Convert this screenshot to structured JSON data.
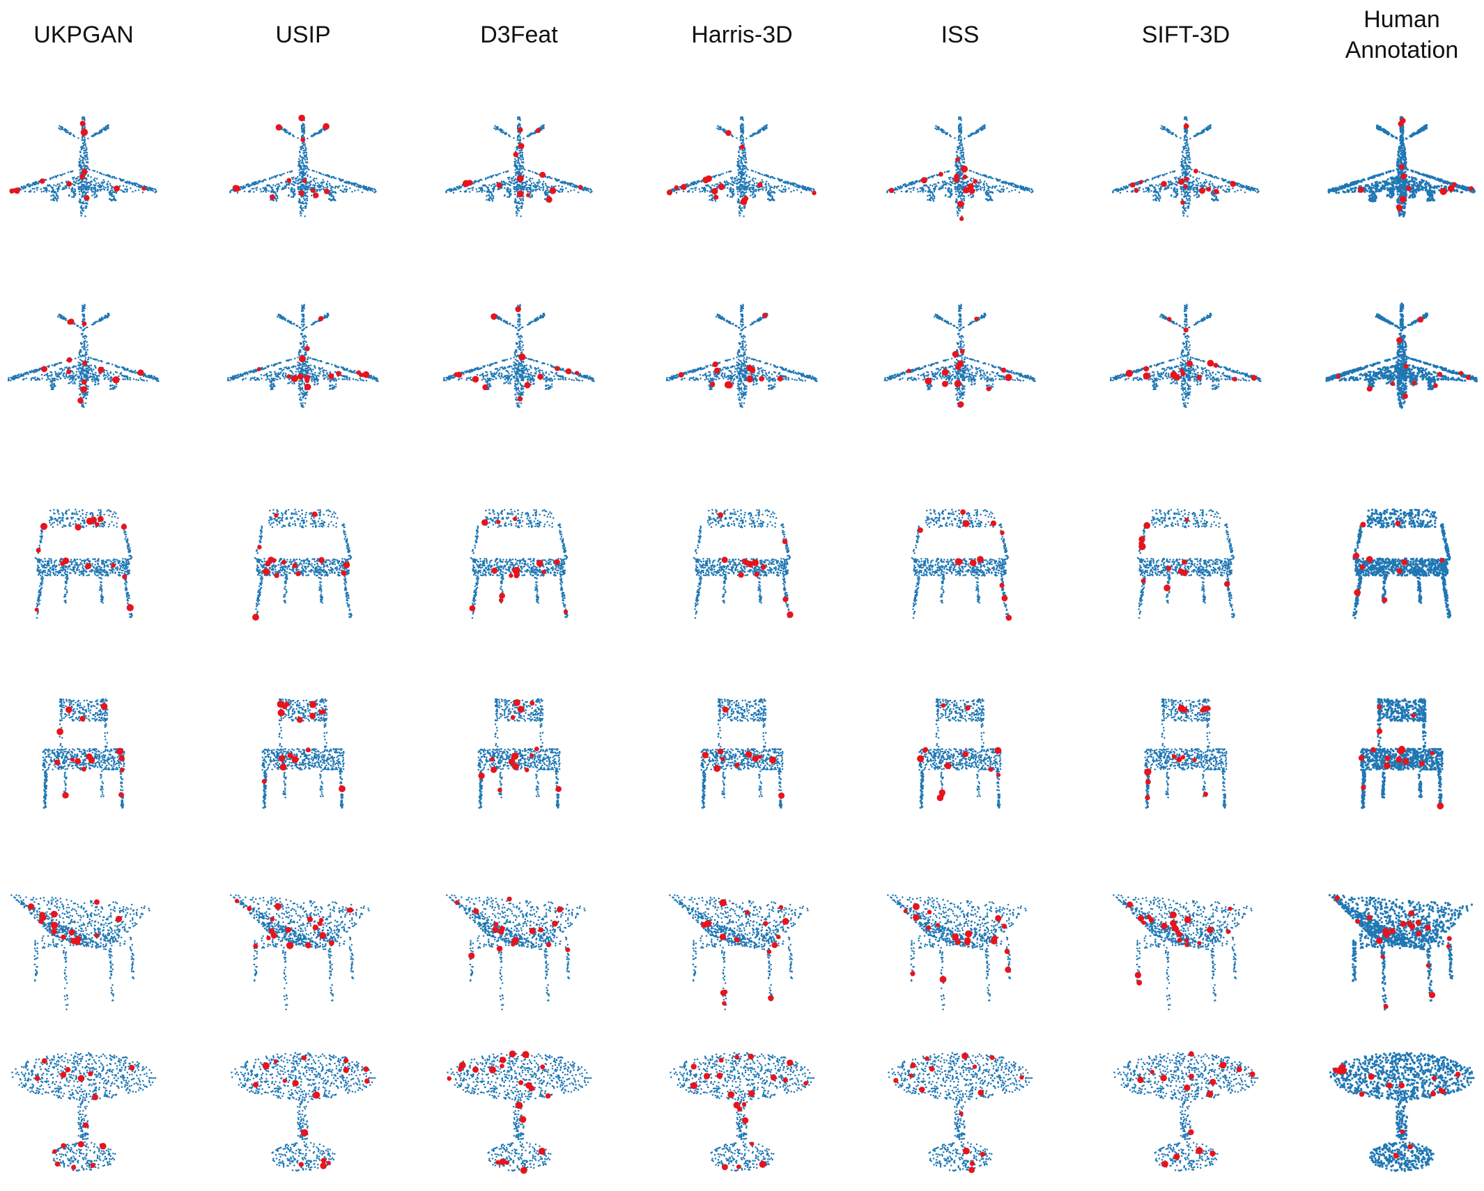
{
  "figure": {
    "columns": [
      "UKPGAN",
      "USIP",
      "D3Feat",
      "Harris-3D",
      "ISS",
      "SIFT-3D",
      "Human\nAnnotation"
    ],
    "rows": [
      {
        "category": "airplane",
        "shape": "airplane-1"
      },
      {
        "category": "airplane",
        "shape": "airplane-2"
      },
      {
        "category": "chair",
        "shape": "chair-armrest"
      },
      {
        "category": "chair",
        "shape": "chair-plain"
      },
      {
        "category": "table",
        "shape": "table-rect"
      },
      {
        "category": "table",
        "shape": "table-round"
      }
    ],
    "colors": {
      "points": "#1f77b4",
      "keypoints": "#e8141c"
    }
  }
}
